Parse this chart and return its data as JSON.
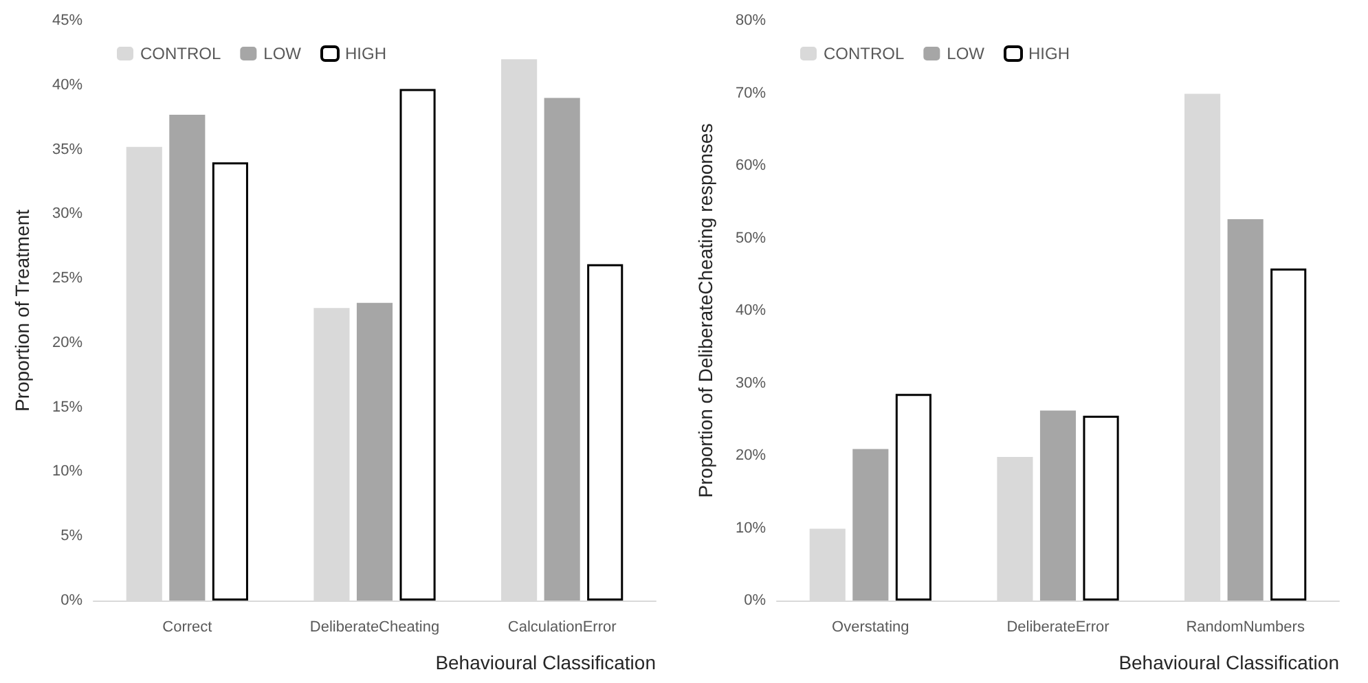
{
  "chart_data": [
    {
      "type": "bar",
      "xlabel": "Behavioural Classification",
      "ylabel": "Proportion of Treatment",
      "categories": [
        "Correct",
        "DeliberateCheating",
        "CalculationError"
      ],
      "series": [
        {
          "name": "CONTROL",
          "color": "#d9d9d9",
          "values": [
            35.2,
            22.7,
            42.0
          ]
        },
        {
          "name": "LOW",
          "color": "#a6a6a6",
          "values": [
            37.7,
            23.1,
            39.0
          ]
        },
        {
          "name": "HIGH",
          "color": "#ffffff",
          "values": [
            34.0,
            39.7,
            26.1
          ]
        }
      ],
      "ylim": [
        0,
        45
      ],
      "yticks": [
        {
          "value": 0,
          "label": "0%"
        },
        {
          "value": 5,
          "label": "5%"
        },
        {
          "value": 10,
          "label": "10%"
        },
        {
          "value": 15,
          "label": "15%"
        },
        {
          "value": 20,
          "label": "20%"
        },
        {
          "value": 25,
          "label": "25%"
        },
        {
          "value": 30,
          "label": "30%"
        },
        {
          "value": 35,
          "label": "35%"
        },
        {
          "value": 40,
          "label": "40%"
        },
        {
          "value": 45,
          "label": "45%"
        }
      ],
      "legend": "top left",
      "grid": false
    },
    {
      "type": "bar",
      "xlabel": "Behavioural Classification",
      "ylabel": "Proportion of DeliberateCheating responses",
      "categories": [
        "Overstating",
        "DeliberateError",
        "RandomNumbers"
      ],
      "series": [
        {
          "name": "CONTROL",
          "color": "#d9d9d9",
          "values": [
            9.9,
            19.8,
            69.9
          ]
        },
        {
          "name": "LOW",
          "color": "#a6a6a6",
          "values": [
            20.9,
            26.2,
            52.6
          ]
        },
        {
          "name": "HIGH",
          "color": "#ffffff",
          "values": [
            28.5,
            25.5,
            45.8
          ]
        }
      ],
      "ylim": [
        0,
        80
      ],
      "yticks": [
        {
          "value": 0,
          "label": "0%"
        },
        {
          "value": 10,
          "label": "10%"
        },
        {
          "value": 20,
          "label": "20%"
        },
        {
          "value": 30,
          "label": "30%"
        },
        {
          "value": 40,
          "label": "40%"
        },
        {
          "value": 50,
          "label": "50%"
        },
        {
          "value": 60,
          "label": "60%"
        },
        {
          "value": 70,
          "label": "70%"
        },
        {
          "value": 80,
          "label": "80%"
        }
      ],
      "legend": "top left",
      "grid": false
    }
  ]
}
